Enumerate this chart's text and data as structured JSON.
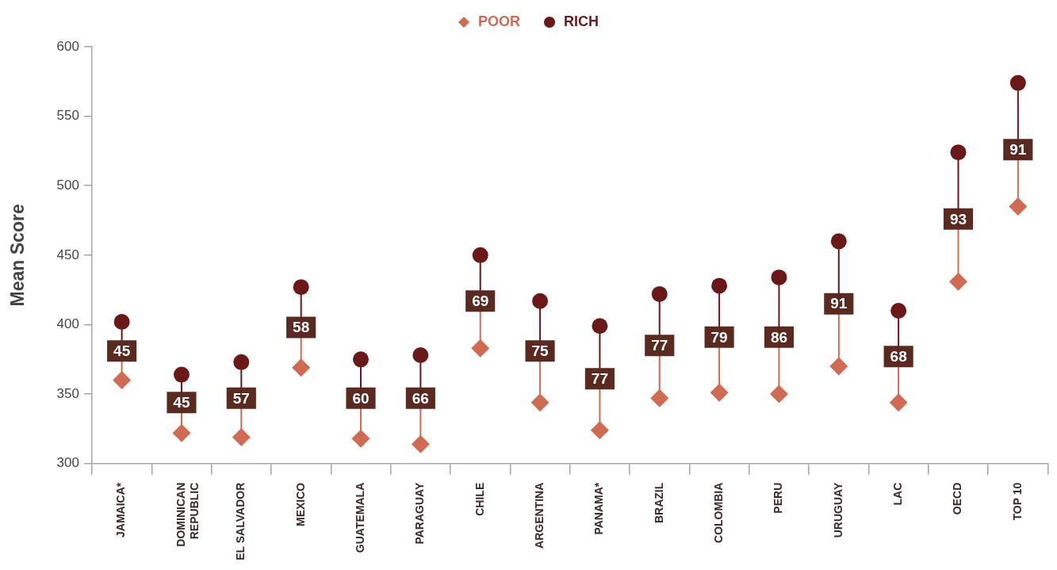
{
  "chart_data": {
    "type": "scatter",
    "categories": [
      "JAMAICA*",
      "DOMINICAN REPUBLIC",
      "EL SALVADOR",
      "MEXICO",
      "GUATEMALA",
      "PARAGUAY",
      "CHILE",
      "ARGENTINA",
      "PANAMA*",
      "BRAZIL",
      "COLOMBIA",
      "PERU",
      "URUGUAY",
      "LAC",
      "OECD",
      "TOP 10"
    ],
    "series": [
      {
        "name": "POOR",
        "color": "#cf6b53",
        "marker": "diamond",
        "values": [
          360,
          322,
          319,
          369,
          318,
          314,
          383,
          344,
          324,
          347,
          351,
          350,
          370,
          344,
          431,
          485
        ]
      },
      {
        "name": "RICH",
        "color": "#6a1818",
        "marker": "circle",
        "values": [
          402,
          364,
          373,
          427,
          375,
          378,
          450,
          417,
          399,
          422,
          428,
          434,
          460,
          410,
          524,
          574
        ]
      }
    ],
    "ylabel": "Mean Score",
    "ylim": [
      300,
      600
    ],
    "yticks": [
      300,
      350,
      400,
      450,
      500,
      550,
      600
    ],
    "grid": false,
    "legend": "top",
    "annotations": [
      {
        "text": "45",
        "x": "JAMAICA*",
        "y": 381
      },
      {
        "text": "45",
        "x": "DOMINICAN REPUBLIC",
        "y": 344
      },
      {
        "text": "57",
        "x": "EL SALVADOR",
        "y": 347
      },
      {
        "text": "58",
        "x": "MEXICO",
        "y": 398
      },
      {
        "text": "60",
        "x": "GUATEMALA",
        "y": 347
      },
      {
        "text": "66",
        "x": "PARAGUAY",
        "y": 347
      },
      {
        "text": "69",
        "x": "CHILE",
        "y": 417
      },
      {
        "text": "75",
        "x": "ARGENTINA",
        "y": 381
      },
      {
        "text": "77",
        "x": "PANAMA*",
        "y": 361
      },
      {
        "text": "77",
        "x": "BRAZIL",
        "y": 385
      },
      {
        "text": "79",
        "x": "COLOMBIA",
        "y": 391
      },
      {
        "text": "86",
        "x": "PERU",
        "y": 391
      },
      {
        "text": "91",
        "x": "URUGUAY",
        "y": 415
      },
      {
        "text": "68",
        "x": "LAC",
        "y": 377
      },
      {
        "text": "93",
        "x": "OECD",
        "y": 476
      },
      {
        "text": "91",
        "x": "TOP 10",
        "y": 526
      }
    ]
  }
}
